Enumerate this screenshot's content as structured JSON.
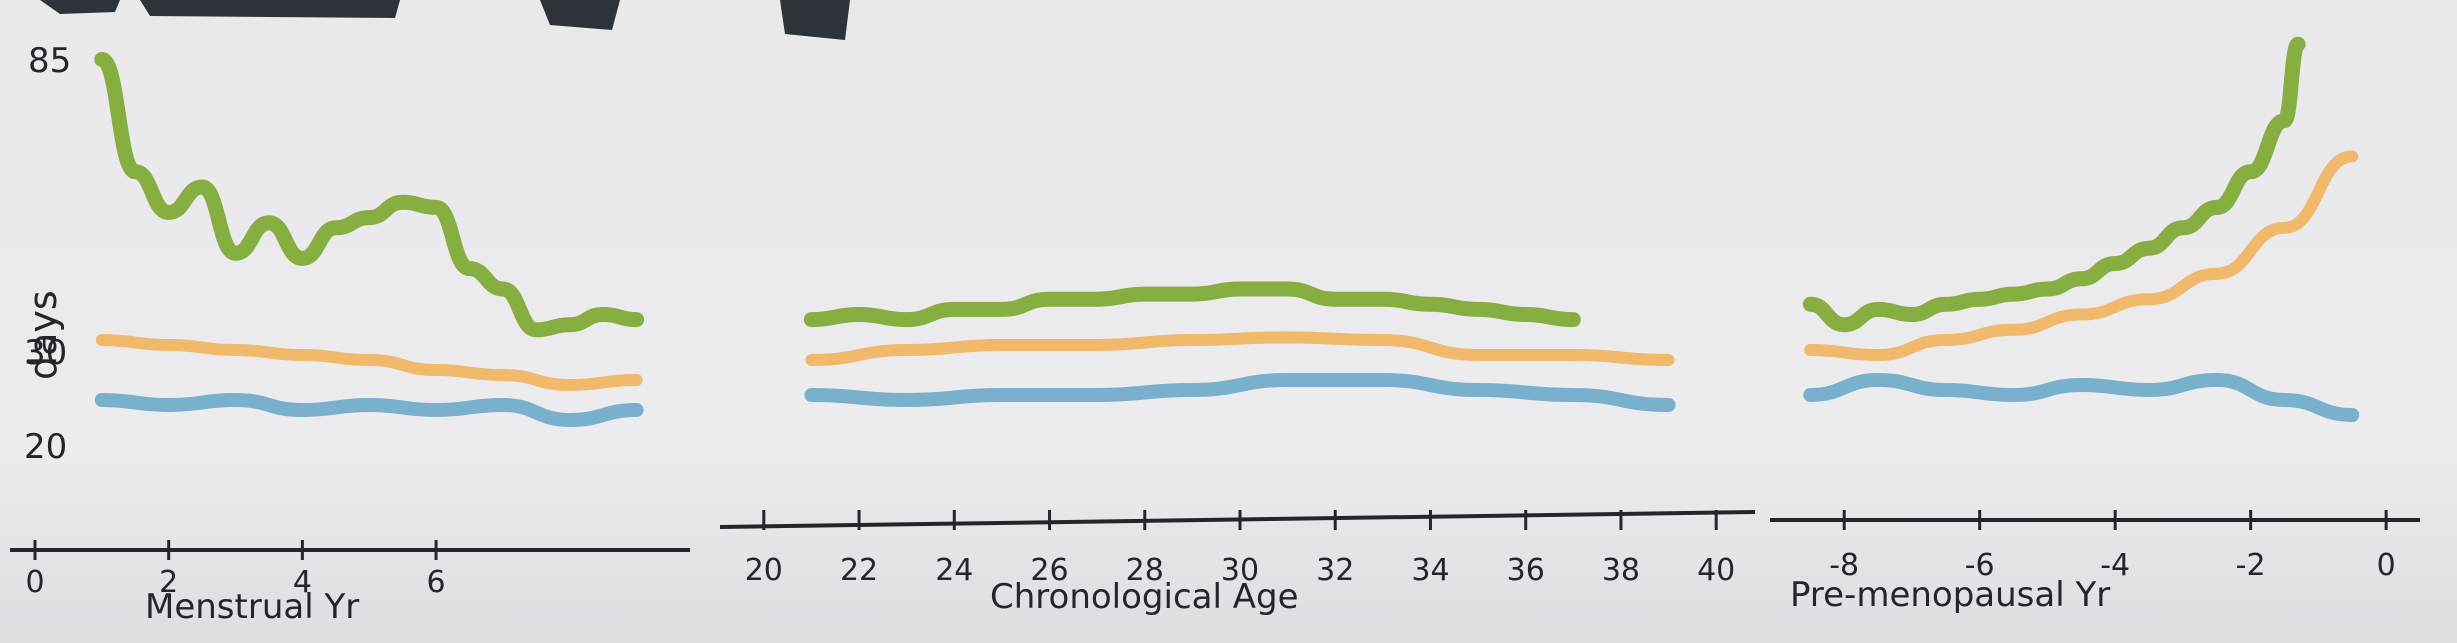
{
  "chart_data": {
    "type": "line",
    "ylabel": "days",
    "y_ticks": [
      "85",
      "30",
      "20"
    ],
    "colors": {
      "green": "#7ea832",
      "orange": "#f0b460",
      "blue": "#6fabc9"
    },
    "panels": [
      {
        "xlabel": "Menstrual Yr",
        "x_ticks": [
          {
            "v": 0,
            "label": "0"
          },
          {
            "v": 2,
            "label": "2"
          },
          {
            "v": 4,
            "label": "4"
          },
          {
            "v": 6,
            "label": "6"
          }
        ],
        "xlim": [
          0,
          9.5
        ],
        "series": [
          {
            "color": "green",
            "x": [
              1,
              1.5,
              2,
              2.5,
              3,
              3.5,
              4,
              4.5,
              5,
              5.5,
              6,
              6.5,
              7,
              7.5,
              8,
              8.5,
              9
            ],
            "y": [
              85,
              63,
              55,
              60,
              47,
              53,
              46,
              52,
              54,
              57,
              56,
              44,
              40,
              32,
              33,
              35,
              34
            ]
          },
          {
            "color": "orange",
            "x": [
              1,
              2,
              3,
              4,
              5,
              6,
              7,
              8,
              9
            ],
            "y": [
              30,
              29.5,
              29,
              28.5,
              28,
              27,
              26.5,
              25.5,
              26
            ]
          },
          {
            "color": "blue",
            "x": [
              1,
              2,
              3,
              4,
              5,
              6,
              7,
              8,
              9
            ],
            "y": [
              24,
              23.5,
              24,
              23,
              23.5,
              23,
              23.5,
              22,
              23
            ]
          }
        ]
      },
      {
        "xlabel": "Chronological Age",
        "x_ticks": [
          {
            "v": 20,
            "label": "20"
          },
          {
            "v": 22,
            "label": "22"
          },
          {
            "v": 24,
            "label": "24"
          },
          {
            "v": 26,
            "label": "26"
          },
          {
            "v": 28,
            "label": "28"
          },
          {
            "v": 30,
            "label": "30"
          },
          {
            "v": 32,
            "label": "32"
          },
          {
            "v": 34,
            "label": "34"
          },
          {
            "v": 36,
            "label": "36"
          },
          {
            "v": 38,
            "label": "38"
          },
          {
            "v": 40,
            "label": "40"
          }
        ],
        "xlim": [
          19.5,
          40.5
        ],
        "series": [
          {
            "color": "green",
            "x": [
              21,
              22,
              23,
              24,
              25,
              26,
              27,
              28,
              29,
              30,
              31,
              32,
              33,
              34,
              35,
              36,
              37
            ],
            "y": [
              34,
              35,
              34,
              36,
              36,
              38,
              38,
              39,
              39,
              40,
              40,
              38,
              38,
              37,
              36,
              35,
              34
            ]
          },
          {
            "color": "orange",
            "x": [
              21,
              23,
              25,
              27,
              29,
              31,
              33,
              35,
              37,
              39
            ],
            "y": [
              28,
              29,
              29.5,
              29.5,
              30,
              30.5,
              30,
              28.5,
              28.5,
              28
            ]
          },
          {
            "color": "blue",
            "x": [
              21,
              23,
              25,
              27,
              29,
              31,
              33,
              35,
              37,
              39
            ],
            "y": [
              24.5,
              24,
              24.5,
              24.5,
              25,
              26,
              26,
              25,
              24.5,
              23.5
            ]
          }
        ]
      },
      {
        "xlabel": "Pre-menopausal Yr",
        "x_ticks": [
          {
            "v": -8,
            "label": "-8"
          },
          {
            "v": -6,
            "label": "-6"
          },
          {
            "v": -4,
            "label": "-4"
          },
          {
            "v": -2,
            "label": "-2"
          },
          {
            "v": 0,
            "label": "0"
          }
        ],
        "xlim": [
          -8.8,
          0.5
        ],
        "series": [
          {
            "color": "green",
            "x": [
              -8.5,
              -8,
              -7.5,
              -7,
              -6.5,
              -6,
              -5.5,
              -5,
              -4.5,
              -4,
              -3.5,
              -3,
              -2.5,
              -2,
              -1.5,
              -1.3
            ],
            "y": [
              37,
              33,
              36,
              35,
              37,
              38,
              39,
              40,
              42,
              45,
              48,
              52,
              56,
              63,
              73,
              88
            ]
          },
          {
            "color": "orange",
            "x": [
              -8.5,
              -7.5,
              -6.5,
              -5.5,
              -4.5,
              -3.5,
              -2.5,
              -1.5,
              -0.5
            ],
            "y": [
              29,
              28.5,
              30,
              32,
              35,
              38,
              43,
              52,
              66
            ]
          },
          {
            "color": "blue",
            "x": [
              -8.5,
              -7.5,
              -6.5,
              -5.5,
              -4.5,
              -3.5,
              -2.5,
              -1.5,
              -0.5
            ],
            "y": [
              24.5,
              26,
              25,
              24.5,
              25.5,
              25,
              26,
              24,
              22.5
            ]
          }
        ]
      }
    ]
  }
}
